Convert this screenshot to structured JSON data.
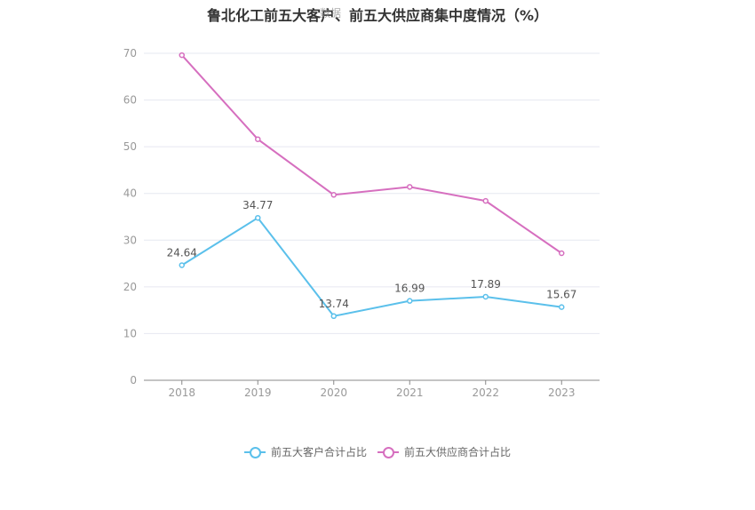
{
  "title": "鲁北化工前五大客户、前五大供应商集中度情况（%）",
  "watermark": "数据",
  "chart_data": {
    "type": "line",
    "categories": [
      "2018",
      "2019",
      "2020",
      "2021",
      "2022",
      "2023"
    ],
    "ylim": [
      0,
      70
    ],
    "yticks": [
      0,
      10,
      20,
      30,
      40,
      50,
      60,
      70
    ],
    "grid": true,
    "legend_position": "bottom",
    "series": [
      {
        "name": "前五大客户合计占比",
        "color": "#5bc0eb",
        "values": [
          24.64,
          34.77,
          13.74,
          16.99,
          17.89,
          15.67
        ],
        "labels": [
          "24.64",
          "34.77",
          "13.74",
          "16.99",
          "17.89",
          "15.67"
        ],
        "show_labels": true
      },
      {
        "name": "前五大供应商合计占比",
        "color": "#d66fbf",
        "values": [
          69.6,
          51.6,
          39.7,
          41.4,
          38.4,
          27.2
        ],
        "labels": [],
        "show_labels": false
      }
    ]
  }
}
